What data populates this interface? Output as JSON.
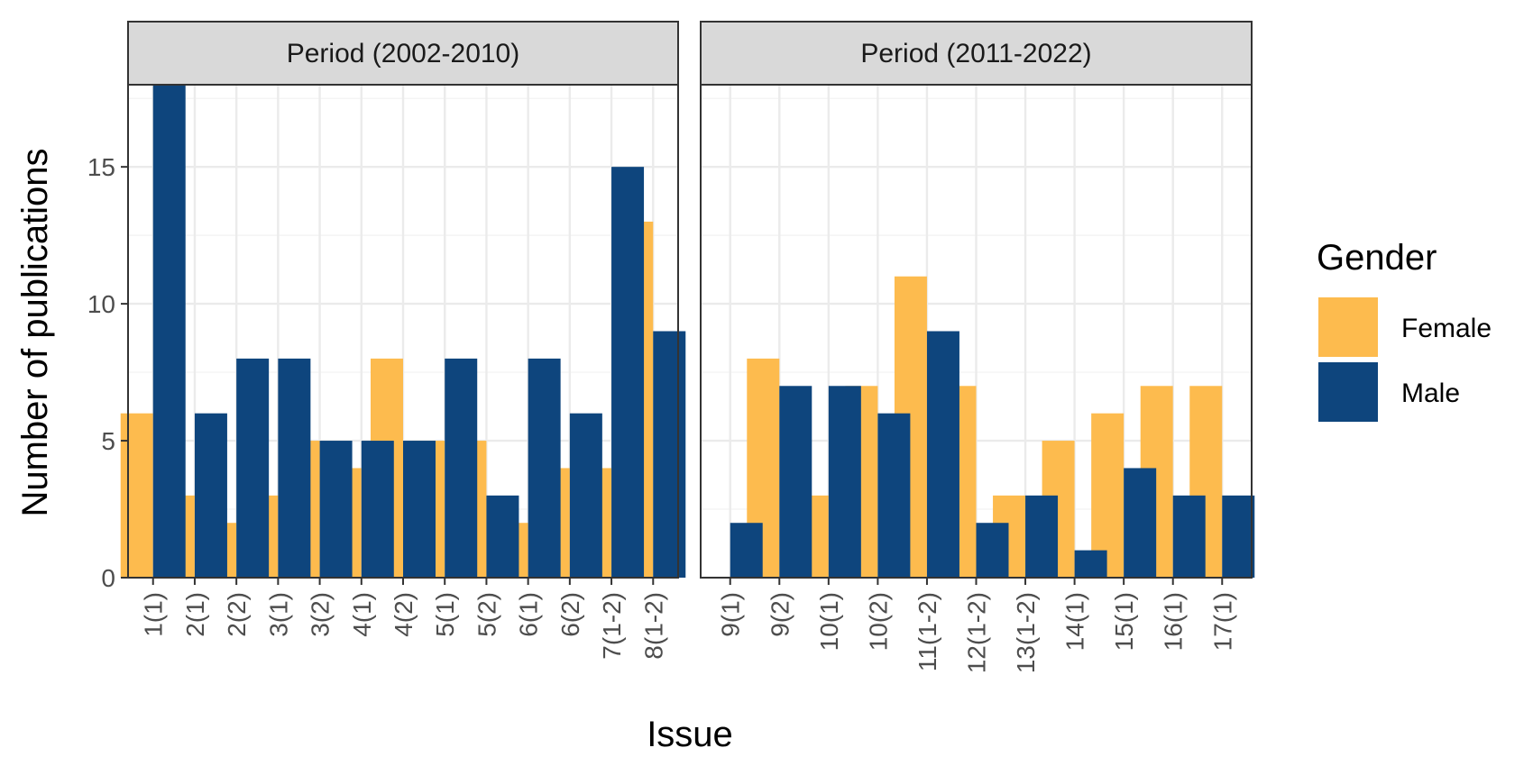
{
  "chart_data": {
    "type": "bar",
    "layout": "faceted grouped bar",
    "xlabel": "Issue",
    "ylabel": "Number of publications",
    "ylim": [
      0,
      18
    ],
    "y_ticks": [
      0,
      5,
      10,
      15
    ],
    "grid": true,
    "legend": {
      "title": "Gender",
      "position": "right",
      "entries": [
        "Female",
        "Male"
      ]
    },
    "colors": {
      "Female": "#FDBB4E",
      "Male": "#0E457D"
    },
    "panels": [
      {
        "title": "Period (2002-2010)",
        "categories": [
          "1(1)",
          "2(1)",
          "2(2)",
          "3(1)",
          "3(2)",
          "4(1)",
          "4(2)",
          "5(1)",
          "5(2)",
          "6(1)",
          "6(2)",
          "7(1-2)",
          "8(1-2)"
        ],
        "series": [
          {
            "name": "Female",
            "values": [
              6,
              3,
              2,
              3,
              5,
              4,
              8,
              5,
              5,
              2,
              4,
              4,
              13
            ]
          },
          {
            "name": "Male",
            "values": [
              18,
              6,
              8,
              8,
              5,
              5,
              5,
              8,
              3,
              8,
              6,
              15,
              9
            ]
          }
        ]
      },
      {
        "title": "Period (2011-2022)",
        "categories": [
          "9(1)",
          "9(2)",
          "10(1)",
          "10(2)",
          "11(1-2)",
          "12(1-2)",
          "13(1-2)",
          "14(1)",
          "15(1)",
          "16(1)",
          "17(1)"
        ],
        "series": [
          {
            "name": "Female",
            "values": [
              0,
              8,
              3,
              7,
              11,
              7,
              3,
              5,
              6,
              7,
              7
            ]
          },
          {
            "name": "Male",
            "values": [
              2,
              7,
              7,
              6,
              9,
              2,
              3,
              1,
              4,
              3,
              3
            ]
          }
        ]
      }
    ]
  }
}
